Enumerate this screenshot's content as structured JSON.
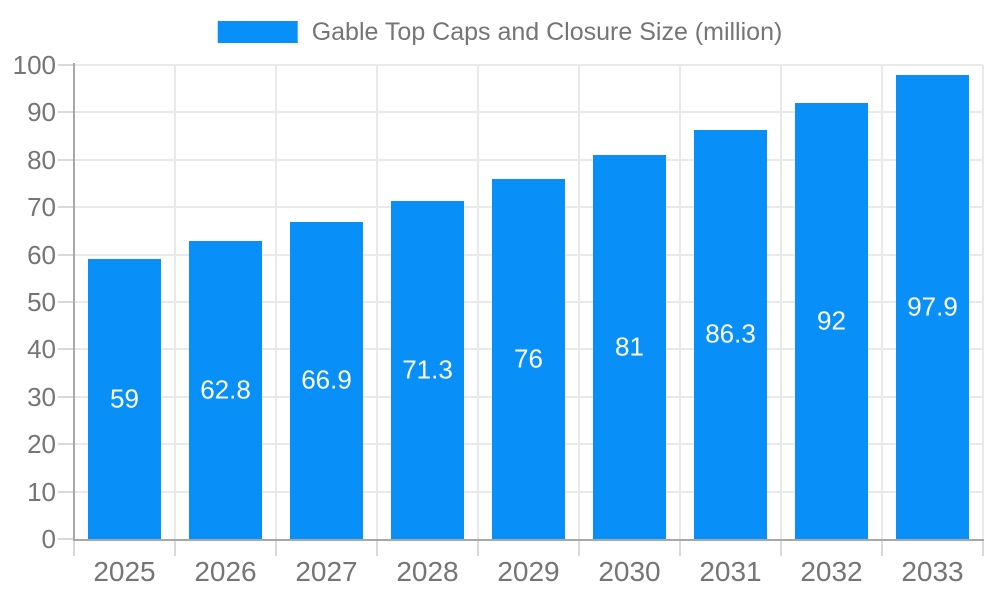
{
  "chart_data": {
    "type": "bar",
    "title": "Gable Top Caps and Closure Size (million)",
    "categories": [
      "2025",
      "2026",
      "2027",
      "2028",
      "2029",
      "2030",
      "2031",
      "2032",
      "2033"
    ],
    "values": [
      59,
      62.8,
      66.9,
      71.3,
      76,
      81,
      86.3,
      92,
      97.9
    ],
    "xlabel": "",
    "ylabel": "",
    "ylim": [
      0,
      100
    ],
    "ytick_step": 10,
    "grid": "on",
    "legend_position": "top-center",
    "colors": {
      "bar": "#0890f8",
      "value_label": "#ffffff",
      "tick_label": "#757575",
      "title": "#757575",
      "axis_line": "#a8a8a8",
      "gridline": "#e9e9e9",
      "tick_mark": "#d9d9d9",
      "background": "#ffffff"
    }
  }
}
